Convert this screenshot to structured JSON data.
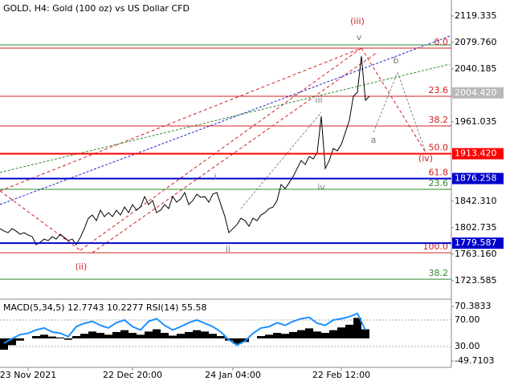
{
  "chart_data": [
    {
      "type": "line",
      "title": "GOLD, H4:  Gold (100 oz) vs US Dollar CFD",
      "categories": [
        null,
        null,
        null,
        null,
        null,
        null,
        null,
        "23 Nov 2021",
        null,
        null,
        null,
        null,
        null,
        null,
        null,
        null,
        null,
        null,
        null,
        null,
        null,
        null,
        null,
        null,
        null,
        null,
        null,
        null,
        null,
        null,
        null,
        null,
        null,
        "22 Dec 20:00",
        null,
        null,
        null,
        null,
        null,
        null,
        null,
        null,
        null,
        null,
        null,
        null,
        null,
        null,
        null,
        null,
        null,
        null,
        null,
        null,
        null,
        null,
        null,
        null,
        "24 Jan 04:00",
        null,
        null,
        null,
        null,
        null,
        null,
        null,
        null,
        null,
        null,
        null,
        null,
        null,
        null,
        null,
        null,
        null,
        null,
        null,
        null,
        null,
        null,
        null,
        null,
        null,
        null,
        "22 Feb 12:00",
        null,
        null,
        null,
        null,
        null,
        null,
        null
      ],
      "values": [
        1801.3,
        1797.7,
        1795.3,
        1801.3,
        1797.7,
        1792.9,
        1795.3,
        1791.7,
        1789.3,
        1777.3,
        1780.9,
        1785.7,
        1783.3,
        1789.3,
        1785.7,
        1792.9,
        1788.1,
        1783.3,
        1785.7,
        1777.3,
        1788.1,
        1801.3,
        1816.9,
        1821.7,
        1813.3,
        1828.9,
        1819.3,
        1825.3,
        1819.3,
        1828.9,
        1821.7,
        1833.7,
        1825.3,
        1837.3,
        1828.9,
        1833.7,
        1849.3,
        1837.3,
        1843.3,
        1825.3,
        1828.9,
        1837.3,
        1831.3,
        1849.3,
        1840.9,
        1845.7,
        1855.3,
        1837.3,
        1843.3,
        1852.9,
        1848.1,
        1849.3,
        1840.9,
        1852.9,
        1855.3,
        1837.3,
        1819.3,
        1795.3,
        1801.3,
        1807.3,
        1816.9,
        1813.3,
        1804.9,
        1816.9,
        1813.3,
        1821.7,
        1825.3,
        1831.3,
        1833.7,
        1843.3,
        1867.3,
        1861.3,
        1869.7,
        1879.3,
        1891.3,
        1903.3,
        1897.3,
        1909.3,
        1905.7,
        1915.3,
        1969.3,
        1891.3,
        1903.3,
        1921.3,
        1917.7,
        1927.3,
        1945.3,
        1963.3,
        1999.3,
        2005.3,
        2059.3,
        1993.3,
        1999.3
      ],
      "color": "#000000",
      "ylim": [
        1697.0,
        2143.3
      ],
      "yticks": [
        {
          "value": 2119.335,
          "label": "2119.335"
        },
        {
          "value": 2079.76,
          "label": "2079.760"
        },
        {
          "value": 2040.185,
          "label": "2040.185"
        },
        {
          "value": 1961.035,
          "label": "1961.035"
        },
        {
          "value": 1842.31,
          "label": "1842.310"
        },
        {
          "value": 1802.735,
          "label": "1802.735"
        },
        {
          "value": 1763.16,
          "label": "1763.160"
        },
        {
          "value": 1723.585,
          "label": "1723.585"
        }
      ],
      "levels": [
        {
          "value": 2076.1,
          "color": "#2e8b2e"
        },
        {
          "value": 2071.3,
          "color": "#d02020",
          "label": "0.0"
        },
        {
          "value": 1999.3,
          "color": "#d02020",
          "label": "23.6"
        },
        {
          "value": 1954.9,
          "color": "#d02020",
          "label": "38.2"
        },
        {
          "value": 1913.42,
          "color": "#d02020",
          "label": "50.0"
        },
        {
          "value": 1876.258,
          "color": "#d02020",
          "label": "61.8"
        },
        {
          "value": 1860.1,
          "color": "#2e8b2e",
          "label": "23.6"
        },
        {
          "value": 1765.3,
          "color": "#d02020",
          "label": "100.0"
        },
        {
          "value": 1725.7,
          "color": "#2e8b2e",
          "label": "38.2"
        }
      ],
      "price_tags": [
        {
          "value": 2004.42,
          "label": "2004.420",
          "color": "#b8b8b8"
        },
        {
          "value": 1913.42,
          "label": "1913.420",
          "color": "#ff0000"
        },
        {
          "value": 1876.258,
          "label": "1876.258",
          "color": "#0000cc"
        },
        {
          "value": 1779.587,
          "label": "1779.587",
          "color": "#0000cc"
        }
      ],
      "annotations": [
        {
          "text": "(iii)",
          "x": 89,
          "y": 2110.9,
          "color": "#d02020"
        },
        {
          "text": "v",
          "x": 89.4,
          "y": 2086.9,
          "color": "#777777"
        },
        {
          "text": "iii",
          "x": 79.4,
          "y": 1993.3,
          "color": "#777777"
        },
        {
          "text": "a",
          "x": 93,
          "y": 1933.3,
          "color": "#777777"
        },
        {
          "text": "b",
          "x": 98.6,
          "y": 2052.1,
          "color": "#777777"
        },
        {
          "text": "(iv)",
          "x": 106,
          "y": 1905.7,
          "color": "#d02020"
        },
        {
          "text": "i",
          "x": 53.6,
          "y": 1878.1,
          "color": "#777777"
        },
        {
          "text": "iv",
          "x": 80,
          "y": 1862.5,
          "color": "#777777"
        },
        {
          "text": "ii",
          "x": 56.8,
          "y": 1770.1,
          "color": "#777777"
        },
        {
          "text": "(ii)",
          "x": 20.2,
          "y": 1743.7,
          "color": "#d02020"
        }
      ]
    },
    {
      "type": "combo",
      "title": "MACD(5,34,5) 12.7743 10.2277 RSI(14) 55.58",
      "ylim": [
        -49.7103,
        70.3833
      ],
      "yticks": [
        {
          "value": 70.3833,
          "label": "70.3833"
        },
        {
          "value": -49.7103,
          "label": "-49.7103"
        }
      ],
      "y2lim": [
        8.2,
        90.6
      ],
      "y2ticks": [
        {
          "value": 70,
          "label": "70.00"
        },
        {
          "value": 30,
          "label": "30.00"
        }
      ],
      "series": [
        {
          "type": "bar",
          "color": "#000000",
          "values": [
            -25,
            -15,
            -5,
            0,
            5,
            8,
            4,
            2,
            -3,
            5,
            10,
            15,
            12,
            8,
            14,
            18,
            12,
            8,
            15,
            20,
            12,
            6,
            10,
            14,
            18,
            15,
            10,
            5,
            -5,
            -12,
            -8,
            0,
            5,
            8,
            12,
            10,
            14,
            18,
            22,
            15,
            12,
            18,
            24,
            30,
            45,
            20
          ]
        },
        {
          "type": "line",
          "axis": "y2",
          "color": "#1e90ff",
          "values": [
            35,
            42,
            48,
            50,
            55,
            58,
            52,
            50,
            45,
            60,
            65,
            68,
            62,
            58,
            66,
            70,
            60,
            55,
            68,
            72,
            62,
            55,
            60,
            66,
            70,
            65,
            60,
            52,
            40,
            32,
            38,
            50,
            58,
            60,
            66,
            62,
            68,
            72,
            74,
            65,
            62,
            70,
            72,
            75,
            80,
            55
          ]
        }
      ]
    }
  ]
}
